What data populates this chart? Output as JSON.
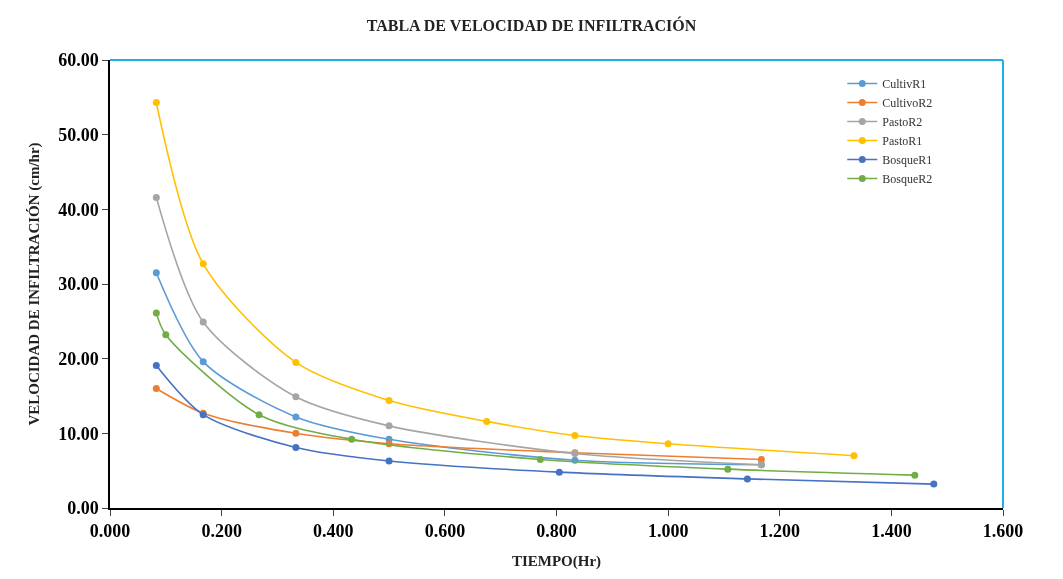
{
  "chart_data": {
    "type": "line",
    "title": "TABLA DE VELOCIDAD DE INFILTRACIÓN",
    "xlabel": "TIEMPO(Hr)",
    "ylabel": "VELOCIDAD DE INFILTRACIÓN (cm/hr)",
    "series": [
      {
        "name": "CultivR1",
        "color": "#5b9bd5",
        "x": [
          0.083,
          0.167,
          0.333,
          0.5,
          0.833,
          1.167
        ],
        "values": [
          31.5,
          19.6,
          12.2,
          9.2,
          6.4,
          5.8
        ]
      },
      {
        "name": "CultivoR2",
        "color": "#ed7d31",
        "x": [
          0.083,
          0.167,
          0.333,
          0.5,
          0.833,
          1.167
        ],
        "values": [
          16.0,
          12.7,
          10.0,
          8.6,
          7.4,
          6.5
        ]
      },
      {
        "name": "PastoR2",
        "color": "#a5a5a5",
        "x": [
          0.083,
          0.167,
          0.333,
          0.5,
          0.833,
          1.167
        ],
        "values": [
          41.6,
          24.9,
          14.9,
          11.0,
          7.3,
          5.8
        ]
      },
      {
        "name": "PastoR1",
        "color": "#ffc000",
        "x": [
          0.083,
          0.167,
          0.333,
          0.5,
          0.675,
          0.833,
          1.0,
          1.333
        ],
        "values": [
          54.3,
          32.7,
          19.5,
          14.4,
          11.6,
          9.7,
          8.6,
          7.0
        ]
      },
      {
        "name": "BosqueR1",
        "color": "#4472c4",
        "x": [
          0.083,
          0.167,
          0.333,
          0.5,
          0.805,
          1.142,
          1.476
        ],
        "values": [
          19.1,
          12.5,
          8.1,
          6.3,
          4.8,
          3.9,
          3.2
        ]
      },
      {
        "name": "BosqueR2",
        "color": "#70ad47",
        "x": [
          0.083,
          0.1,
          0.267,
          0.433,
          0.771,
          1.107,
          1.442
        ],
        "values": [
          26.1,
          23.2,
          12.5,
          9.2,
          6.5,
          5.2,
          4.4
        ]
      }
    ],
    "xlim": [
      0,
      1.6
    ],
    "xticks": [
      {
        "value": 0,
        "label": "0.000"
      },
      {
        "value": 0.2,
        "label": "0.200"
      },
      {
        "value": 0.4,
        "label": "0.400"
      },
      {
        "value": 0.6,
        "label": "0.600"
      },
      {
        "value": 0.8,
        "label": "0.800"
      },
      {
        "value": 1.0,
        "label": "1.000"
      },
      {
        "value": 1.2,
        "label": "1.200"
      },
      {
        "value": 1.4,
        "label": "1.400"
      },
      {
        "value": 1.6,
        "label": "1.600"
      }
    ],
    "ylim": [
      0,
      60
    ],
    "yticks": [
      {
        "value": 0,
        "label": "0.00"
      },
      {
        "value": 10,
        "label": "10.00"
      },
      {
        "value": 20,
        "label": "20.00"
      },
      {
        "value": 30,
        "label": "30.00"
      },
      {
        "value": 40,
        "label": "40.00"
      },
      {
        "value": 50,
        "label": "50.00"
      },
      {
        "value": 60,
        "label": "60.00"
      }
    ],
    "legend": "top right",
    "marker": "circle",
    "line_style": "solid"
  }
}
